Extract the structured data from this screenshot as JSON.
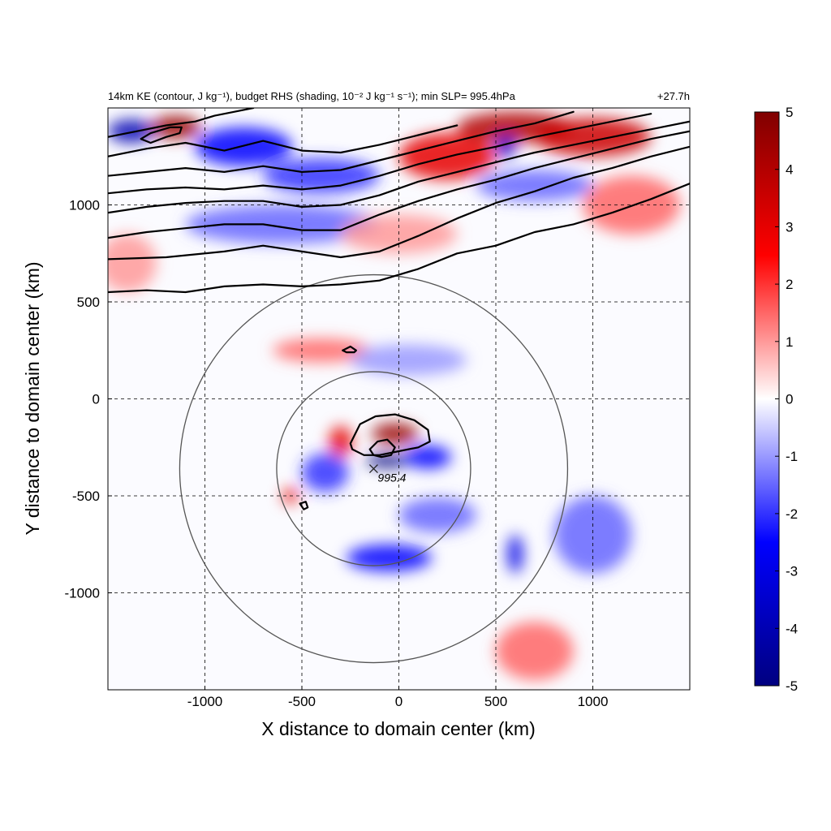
{
  "chart_data": {
    "type": "heatmap",
    "title": "14km KE (contour, J kg⁻¹), budget RHS (shading, 10⁻² J kg⁻¹ s⁻¹); min SLP= 995.4hPa",
    "time_label": "+27.7h",
    "xlabel": "X distance to domain center (km)",
    "ylabel": "Y distance to domain center (km)",
    "xlim": [
      -1500,
      1500
    ],
    "ylim": [
      -1500,
      1500
    ],
    "x_ticks": [
      -1000,
      -500,
      0,
      500,
      1000
    ],
    "y_ticks": [
      1000,
      500,
      0,
      -500,
      -1000
    ],
    "x_tick_labels": [
      "-1000",
      "-500",
      "0",
      "500",
      "1000"
    ],
    "y_tick_labels": [
      "1000",
      "500",
      "0",
      "-500",
      "-1000"
    ],
    "grid": true,
    "colorbar": {
      "range": [
        -5,
        5
      ],
      "ticks": [
        5,
        4,
        3,
        2,
        1,
        0,
        -1,
        -2,
        -3,
        -4,
        -5
      ],
      "tick_labels": [
        "5",
        "4",
        "3",
        "2",
        "1",
        "0",
        "-1",
        "-2",
        "-3",
        "-4",
        "-5"
      ],
      "colormap": [
        "#000080",
        "#0000ff",
        "#ffffff",
        "#ff0000",
        "#800000"
      ]
    },
    "storm_center": {
      "x": -130,
      "y": -360,
      "label": "995.4"
    },
    "range_rings_km": [
      500,
      1000
    ],
    "ke_contours": [
      {
        "x": [
          -1500,
          -1300,
          -1100,
          -900,
          -700,
          -500,
          -300,
          -100,
          100,
          300,
          500,
          700,
          900,
          1100,
          1300,
          1500
        ],
        "y": [
          550,
          560,
          550,
          580,
          590,
          580,
          590,
          610,
          670,
          750,
          790,
          860,
          900,
          960,
          1030,
          1110
        ]
      },
      {
        "x": [
          -1500,
          -1200,
          -900,
          -700,
          -500,
          -300,
          -100,
          100,
          300,
          500,
          700,
          900,
          1100,
          1300,
          1500
        ],
        "y": [
          720,
          730,
          760,
          790,
          760,
          730,
          760,
          840,
          930,
          1010,
          1070,
          1140,
          1190,
          1250,
          1300
        ]
      },
      {
        "x": [
          -1500,
          -1300,
          -1100,
          -900,
          -700,
          -500,
          -300,
          -100,
          100,
          300,
          500,
          700,
          900,
          1100,
          1300,
          1500
        ],
        "y": [
          830,
          860,
          880,
          900,
          900,
          870,
          870,
          950,
          1020,
          1080,
          1130,
          1190,
          1240,
          1290,
          1340,
          1380
        ]
      },
      {
        "x": [
          -1500,
          -1300,
          -1100,
          -900,
          -700,
          -500,
          -300,
          -100,
          100,
          300,
          500,
          700,
          900,
          1100,
          1300,
          1500
        ],
        "y": [
          960,
          990,
          1010,
          1020,
          1020,
          990,
          1000,
          1050,
          1120,
          1170,
          1220,
          1270,
          1310,
          1350,
          1390,
          1430
        ]
      },
      {
        "x": [
          -1500,
          -1300,
          -1100,
          -900,
          -700,
          -500,
          -300,
          -100,
          100,
          300,
          500,
          700,
          900,
          1100,
          1300
        ],
        "y": [
          1060,
          1080,
          1090,
          1080,
          1100,
          1080,
          1100,
          1150,
          1210,
          1260,
          1300,
          1350,
          1390,
          1430,
          1470
        ]
      },
      {
        "x": [
          -1500,
          -1300,
          -1100,
          -900,
          -700,
          -500,
          -300,
          -100,
          100,
          300,
          500,
          700,
          900
        ],
        "y": [
          1150,
          1170,
          1190,
          1170,
          1200,
          1170,
          1180,
          1230,
          1280,
          1330,
          1380,
          1420,
          1480
        ]
      },
      {
        "x": [
          -1500,
          -1300,
          -1100,
          -900,
          -700,
          -500,
          -300,
          -100,
          100,
          300
        ],
        "y": [
          1250,
          1290,
          1320,
          1280,
          1330,
          1280,
          1270,
          1310,
          1360,
          1410
        ]
      },
      {
        "x": [
          -1500,
          -1350,
          -1200,
          -1050,
          -950,
          -850,
          -750
        ],
        "y": [
          1350,
          1380,
          1410,
          1430,
          1460,
          1480,
          1500
        ]
      },
      {
        "x": [
          -1280,
          -1200,
          -1130,
          -1120,
          -1180,
          -1280,
          -1330,
          -1280
        ],
        "y": [
          1320,
          1350,
          1370,
          1400,
          1400,
          1370,
          1340,
          1320
        ]
      },
      {
        "x": [
          -250,
          -200,
          -120,
          -20,
          80,
          150,
          160,
          100,
          0,
          -100,
          -180,
          -240,
          -250
        ],
        "y": [
          -230,
          -130,
          -90,
          -80,
          -110,
          -160,
          -220,
          -250,
          -270,
          -290,
          -290,
          -260,
          -230
        ]
      },
      {
        "x": [
          -150,
          -110,
          -60,
          -20,
          -40,
          -90,
          -130,
          -150
        ],
        "y": [
          -260,
          -220,
          -210,
          -250,
          -290,
          -300,
          -290,
          -260
        ]
      },
      {
        "x": [
          -290,
          -250,
          -220,
          -230,
          -270,
          -290
        ],
        "y": [
          250,
          270,
          250,
          240,
          240,
          250
        ]
      },
      {
        "x": [
          -510,
          -480,
          -470,
          -490,
          -510
        ],
        "y": [
          -540,
          -530,
          -560,
          -570,
          -540
        ]
      }
    ],
    "shading_features": [
      {
        "x": -20,
        "y": -180,
        "value": 4.5,
        "rx": 120,
        "ry": 55
      },
      {
        "x": -60,
        "y": -320,
        "value": -5,
        "rx": 110,
        "ry": 35
      },
      {
        "x": -300,
        "y": -220,
        "value": 3,
        "rx": 60,
        "ry": 80
      },
      {
        "x": 150,
        "y": -300,
        "value": -2.5,
        "rx": 120,
        "ry": 60
      },
      {
        "x": -50,
        "y": -820,
        "value": -2.5,
        "rx": 220,
        "ry": 70
      },
      {
        "x": -560,
        "y": -500,
        "value": 3,
        "rx": 40,
        "ry": 40
      },
      {
        "x": -380,
        "y": -380,
        "value": -2,
        "rx": 120,
        "ry": 100
      },
      {
        "x": 200,
        "y": -600,
        "value": -1.5,
        "rx": 200,
        "ry": 90
      },
      {
        "x": -400,
        "y": 250,
        "value": 1.5,
        "rx": 250,
        "ry": 60
      },
      {
        "x": 50,
        "y": 200,
        "value": -1,
        "rx": 300,
        "ry": 80
      },
      {
        "x": 600,
        "y": -800,
        "value": -3,
        "rx": 40,
        "ry": 100
      },
      {
        "x": 1000,
        "y": -700,
        "value": -1.5,
        "rx": 200,
        "ry": 200
      },
      {
        "x": -1380,
        "y": 1380,
        "value": -4,
        "rx": 120,
        "ry": 60
      },
      {
        "x": -1150,
        "y": 1400,
        "value": 4.5,
        "rx": 130,
        "ry": 60
      },
      {
        "x": -800,
        "y": 1300,
        "value": -2.5,
        "rx": 250,
        "ry": 100
      },
      {
        "x": -400,
        "y": 1150,
        "value": -2,
        "rx": 300,
        "ry": 90
      },
      {
        "x": 250,
        "y": 1250,
        "value": 3,
        "rx": 250,
        "ry": 120
      },
      {
        "x": 600,
        "y": 1400,
        "value": 4,
        "rx": 300,
        "ry": 80
      },
      {
        "x": 550,
        "y": 1300,
        "value": -3.5,
        "rx": 50,
        "ry": 60
      },
      {
        "x": 1000,
        "y": 1350,
        "value": 3.5,
        "rx": 300,
        "ry": 100
      },
      {
        "x": -600,
        "y": 900,
        "value": -1.5,
        "rx": 500,
        "ry": 100
      },
      {
        "x": 700,
        "y": 1100,
        "value": -1.5,
        "rx": 300,
        "ry": 80
      },
      {
        "x": 1200,
        "y": 1000,
        "value": 1.5,
        "rx": 250,
        "ry": 150
      },
      {
        "x": -1400,
        "y": 700,
        "value": 1,
        "rx": 150,
        "ry": 150
      },
      {
        "x": 0,
        "y": 850,
        "value": 1,
        "rx": 300,
        "ry": 100
      },
      {
        "x": 700,
        "y": -1300,
        "value": 1.5,
        "rx": 200,
        "ry": 150
      }
    ]
  }
}
